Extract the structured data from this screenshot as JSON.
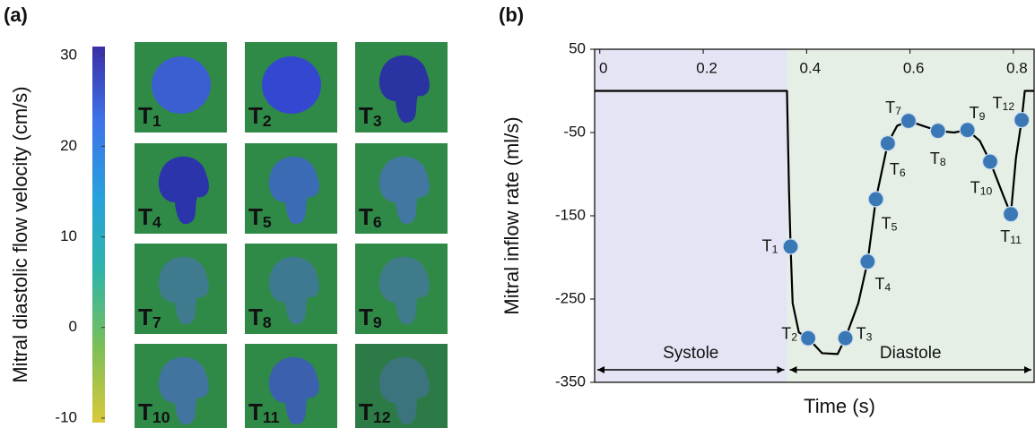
{
  "panel_a": {
    "label": "(a)",
    "colorbar": {
      "title": "Mitral diastolic flow velocity (cm/s)",
      "lim": [
        -10.5,
        31
      ],
      "ticks": [
        30,
        20,
        10,
        0,
        -10
      ]
    },
    "tiles": [
      [
        "T",
        "1"
      ],
      [
        "T",
        "2"
      ],
      [
        "T",
        "3"
      ],
      [
        "T",
        "4"
      ],
      [
        "T",
        "5"
      ],
      [
        "T",
        "6"
      ],
      [
        "T",
        "7"
      ],
      [
        "T",
        "8"
      ],
      [
        "T",
        "9"
      ],
      [
        "T",
        "10"
      ],
      [
        "T",
        "11"
      ],
      [
        "T",
        "12"
      ]
    ]
  },
  "chart_data": {
    "type": "line",
    "panel_label": "(b)",
    "xlabel": "Time (s)",
    "ylabel": "Mitral inflow rate (ml/s)",
    "xlim": [
      -0.01,
      0.84
    ],
    "ylim": [
      -350,
      50
    ],
    "xticks": [
      0,
      0.2,
      0.4,
      0.6,
      0.8
    ],
    "yticks": [
      50,
      -50,
      -150,
      -250,
      -350
    ],
    "color": "#000000",
    "x": [
      -0.01,
      0.362,
      0.366,
      0.369,
      0.373,
      0.385,
      0.403,
      0.43,
      0.46,
      0.475,
      0.5,
      0.518,
      0.534,
      0.557,
      0.575,
      0.597,
      0.625,
      0.654,
      0.685,
      0.711,
      0.735,
      0.755,
      0.78,
      0.795,
      0.805,
      0.816,
      0.822,
      0.84
    ],
    "values": [
      0,
      0,
      -120,
      -187,
      -255,
      -290,
      -297,
      -315,
      -316,
      -297,
      -255,
      -205,
      -130,
      -63,
      -42,
      -36,
      -42,
      -48,
      -50,
      -47,
      -60,
      -85,
      -125,
      -148,
      -80,
      -35,
      0,
      0
    ],
    "points": {
      "color": "#3a78b5",
      "x": [
        0.369,
        0.403,
        0.475,
        0.518,
        0.534,
        0.557,
        0.597,
        0.654,
        0.711,
        0.755,
        0.795,
        0.816
      ],
      "values": [
        -187,
        -297,
        -297,
        -205,
        -130,
        -63,
        -36,
        -48,
        -47,
        -85,
        -148,
        -35
      ],
      "labels": [
        [
          "T",
          "1"
        ],
        [
          "T",
          "2"
        ],
        [
          "T",
          "3"
        ],
        [
          "T",
          "4"
        ],
        [
          "T",
          "5"
        ],
        [
          "T",
          "6"
        ],
        [
          "T",
          "7"
        ],
        [
          "T",
          "8"
        ],
        [
          "T",
          "9"
        ],
        [
          "T",
          "10"
        ],
        [
          "T",
          "11"
        ],
        [
          "T",
          "12"
        ]
      ]
    },
    "phases": [
      {
        "label": "Systole",
        "start": -0.01,
        "end": 0.362,
        "color": "#e4e4f4"
      },
      {
        "label": "Diastole",
        "start": 0.362,
        "end": 0.84,
        "color": "#e5efe5"
      }
    ]
  }
}
